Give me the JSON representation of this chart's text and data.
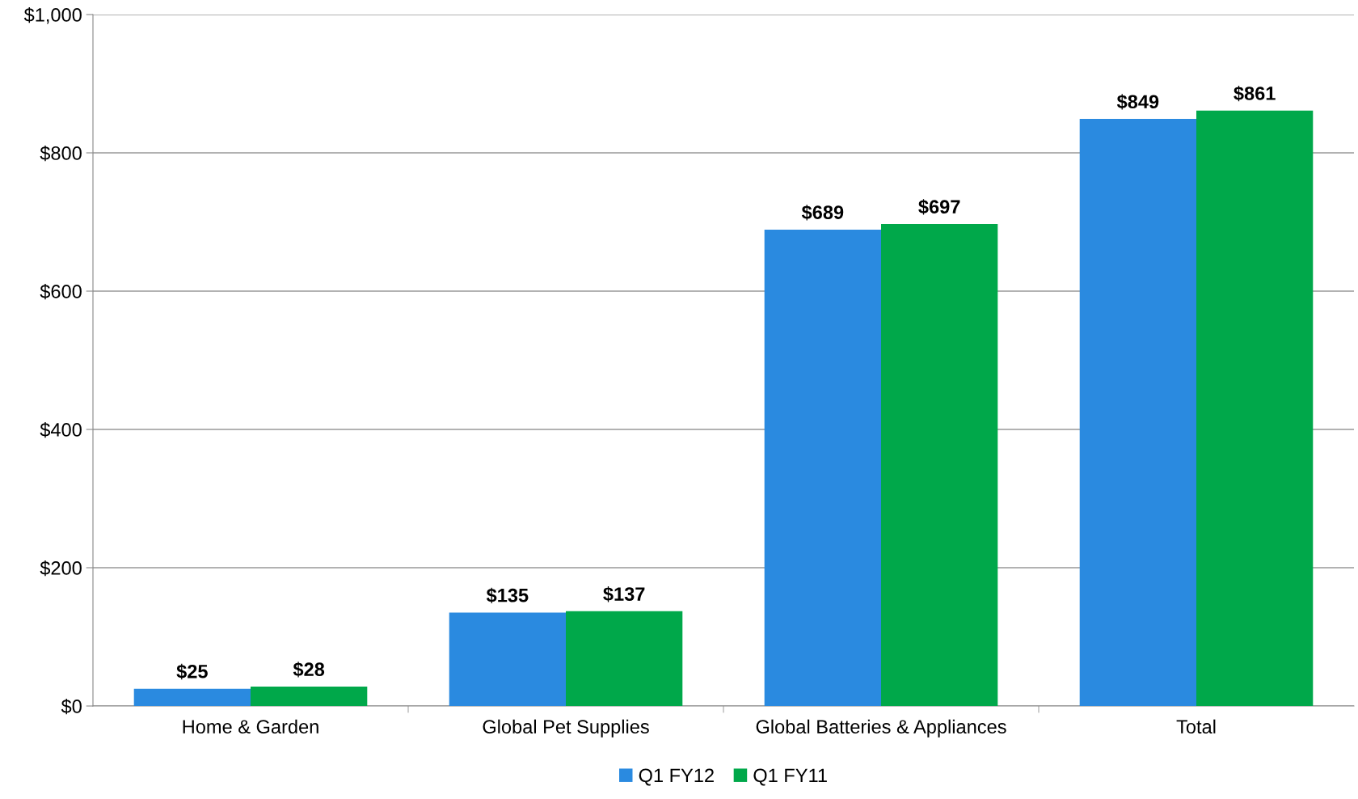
{
  "chart_data": {
    "type": "bar",
    "categories": [
      "Home & Garden",
      "Global Pet Supplies",
      "Global Batteries & Appliances",
      "Total"
    ],
    "series": [
      {
        "name": "Q1 FY12",
        "color": "#2a8ae0",
        "values": [
          25,
          135,
          689,
          849
        ]
      },
      {
        "name": "Q1 FY11",
        "color": "#00a84a",
        "values": [
          28,
          137,
          697,
          861
        ]
      }
    ],
    "ylim": [
      0,
      1000
    ],
    "yticks": [
      {
        "value": 0,
        "label": "$0"
      },
      {
        "value": 200,
        "label": "$200"
      },
      {
        "value": 400,
        "label": "$400"
      },
      {
        "value": 600,
        "label": "$600"
      },
      {
        "value": 800,
        "label": "$800"
      },
      {
        "value": 1000,
        "label": "$1,000"
      }
    ],
    "value_labels": [
      [
        "$25",
        "$135",
        "$689",
        "$849"
      ],
      [
        "$28",
        "$137",
        "$697",
        "$861"
      ]
    ],
    "grid": "y",
    "legend": "bottom"
  }
}
